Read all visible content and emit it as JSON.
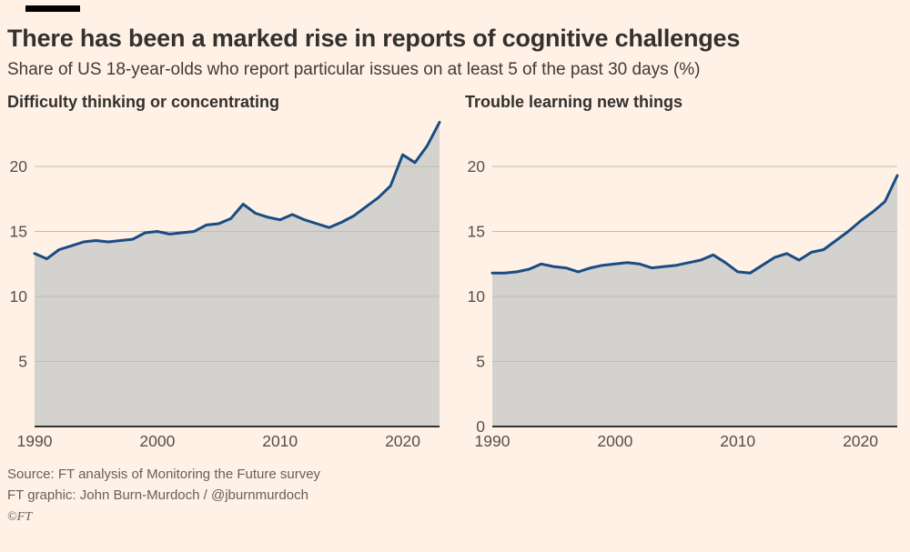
{
  "page": {
    "title": "There has been a marked rise in reports of cognitive challenges",
    "subtitle": "Share of US 18-year-olds who report particular issues on at least 5 of the past 30 days (%)",
    "source_line1": "Source: FT analysis of Monitoring the Future survey",
    "source_line2": "FT graphic: John Burn-Murdoch / @jburnmurdoch",
    "copyright": "©FT",
    "colors": {
      "background": "#FFF1E5",
      "line": "#1A4C84",
      "area": "#D3D2CE",
      "grid": "#C2BCB4",
      "axis": "#33302E",
      "tick_text": "#54504B"
    }
  },
  "chart_data": [
    {
      "type": "area",
      "title": "Difficulty thinking or concentrating",
      "x": [
        1990,
        1991,
        1992,
        1993,
        1994,
        1995,
        1996,
        1997,
        1998,
        1999,
        2000,
        2001,
        2002,
        2003,
        2004,
        2005,
        2006,
        2007,
        2008,
        2009,
        2010,
        2011,
        2012,
        2013,
        2014,
        2015,
        2016,
        2017,
        2018,
        2019,
        2020,
        2021,
        2022,
        2023
      ],
      "values": [
        13.3,
        12.9,
        13.6,
        13.9,
        14.2,
        14.3,
        14.2,
        14.3,
        14.4,
        14.9,
        15.0,
        14.8,
        14.9,
        15.0,
        15.5,
        15.6,
        16.0,
        17.1,
        16.4,
        16.1,
        15.9,
        16.3,
        15.9,
        15.6,
        15.3,
        15.7,
        16.2,
        16.9,
        17.6,
        18.5,
        20.9,
        20.3,
        21.6,
        23.4
      ],
      "xlim": [
        1990,
        2023
      ],
      "ylim": [
        0,
        23.5
      ],
      "xticks": [
        1990,
        2000,
        2010,
        2020
      ],
      "yticks": [
        5,
        10,
        15,
        20
      ],
      "grid": true,
      "legend": "none"
    },
    {
      "type": "area",
      "title": "Trouble learning new things",
      "x": [
        1990,
        1991,
        1992,
        1993,
        1994,
        1995,
        1996,
        1997,
        1998,
        1999,
        2000,
        2001,
        2002,
        2003,
        2004,
        2005,
        2006,
        2007,
        2008,
        2009,
        2010,
        2011,
        2012,
        2013,
        2014,
        2015,
        2016,
        2017,
        2018,
        2019,
        2020,
        2021,
        2022,
        2023
      ],
      "values": [
        11.8,
        11.8,
        11.9,
        12.1,
        12.5,
        12.3,
        12.2,
        11.9,
        12.2,
        12.4,
        12.5,
        12.6,
        12.5,
        12.2,
        12.3,
        12.4,
        12.6,
        12.8,
        13.2,
        12.6,
        11.9,
        11.8,
        12.4,
        13.0,
        13.3,
        12.8,
        13.4,
        13.6,
        14.3,
        15.0,
        15.8,
        16.5,
        17.3,
        19.3
      ],
      "xlim": [
        1990,
        2023
      ],
      "ylim": [
        0,
        23.5
      ],
      "xticks": [
        1990,
        2000,
        2010,
        2020
      ],
      "yticks": [
        0,
        5,
        10,
        15,
        20
      ],
      "grid": true,
      "legend": "none"
    }
  ]
}
